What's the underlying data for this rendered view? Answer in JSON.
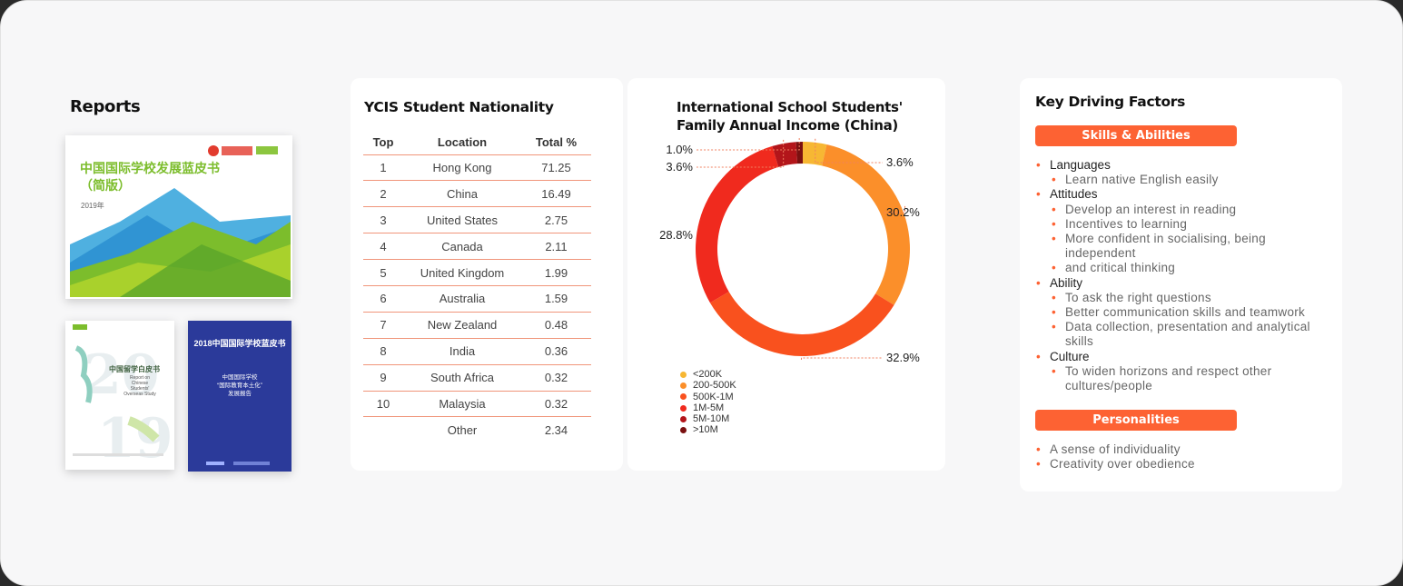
{
  "reports": {
    "title": "Reports",
    "covers": [
      {
        "title_line1": "中国国际学校发展蓝皮书",
        "title_line2": "（简版）",
        "year": "2019年"
      },
      {
        "title": "中国留学白皮书",
        "subtitle": "Report on Chinese Students' Overseas Study"
      },
      {
        "title": "2018中国国际学校蓝皮书",
        "subtitle_line1": "中国国际学校",
        "subtitle_line2": "“国际教育本土化”",
        "subtitle_line3": "发展报告"
      }
    ]
  },
  "nationality": {
    "title": "YCIS Student Nationality",
    "headers": [
      "Top",
      "Location",
      "Total %"
    ],
    "rows": [
      {
        "rank": "1",
        "location": "Hong Kong",
        "total": "71.25"
      },
      {
        "rank": "2",
        "location": "China",
        "total": "16.49"
      },
      {
        "rank": "3",
        "location": "United States",
        "total": "2.75"
      },
      {
        "rank": "4",
        "location": "Canada",
        "total": "2.11"
      },
      {
        "rank": "5",
        "location": "United Kingdom",
        "total": "1.99"
      },
      {
        "rank": "6",
        "location": "Australia",
        "total": "1.59"
      },
      {
        "rank": "7",
        "location": "New Zealand",
        "total": "0.48"
      },
      {
        "rank": "8",
        "location": "India",
        "total": "0.36"
      },
      {
        "rank": "9",
        "location": "South Africa",
        "total": "0.32"
      },
      {
        "rank": "10",
        "location": "Malaysia",
        "total": "0.32"
      },
      {
        "rank": "",
        "location": "Other",
        "total": "2.34"
      }
    ]
  },
  "chart_data": {
    "type": "pie",
    "title": "International School Students' Family Annual Income (China)",
    "categories": [
      "<200K",
      "200-500K",
      "500K-1M",
      "1M-5M",
      "5M-10M",
      ">10M"
    ],
    "values": [
      3.6,
      30.2,
      32.9,
      28.8,
      3.6,
      1.0
    ],
    "labels": [
      "3.6%",
      "30.2%",
      "32.9%",
      "28.8%",
      "3.6%",
      "1.0%"
    ],
    "colors": [
      "#f7b733",
      "#fb8f2a",
      "#f9511e",
      "#f02a1e",
      "#b3151a",
      "#7a1010"
    ],
    "donut": true,
    "legend_position": "bottom-left"
  },
  "factors": {
    "title": "Key Driving Factors",
    "skills_label": "Skills & Abilities",
    "personalities_label": "Personalities",
    "skills": [
      {
        "name": "Languages",
        "items": [
          "Learn native English easily"
        ]
      },
      {
        "name": "Attitudes",
        "items": [
          "Develop an interest in reading",
          "Incentives to learning",
          "More confident in socialising, being independent",
          "and critical thinking"
        ]
      },
      {
        "name": "Ability",
        "items": [
          "To ask the right questions",
          "Better communication skills and teamwork",
          "Data collection, presentation and analytical skills"
        ]
      },
      {
        "name": "Culture",
        "items": [
          "To widen horizons and respect other cultures/people"
        ]
      }
    ],
    "personalities": [
      "A sense of individuality",
      "Creativity over obedience"
    ]
  }
}
